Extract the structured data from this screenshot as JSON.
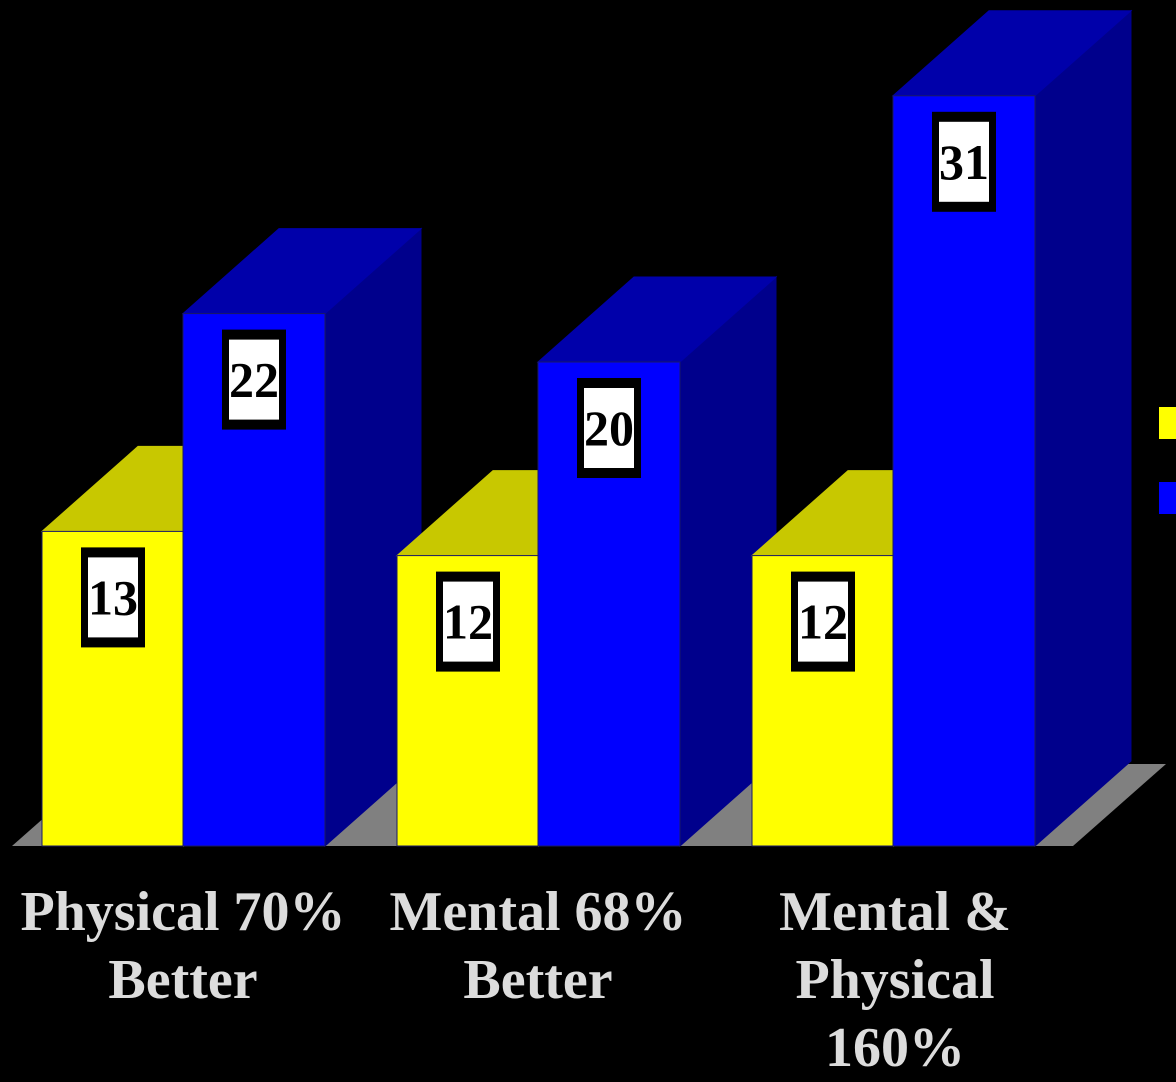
{
  "chart_data": {
    "type": "bar",
    "style": "3d-clustered-column",
    "categories": [
      "Physical 70%\nBetter",
      "Mental 68%\nBetter",
      "Mental &\nPhysical 160%"
    ],
    "series": [
      {
        "values": [
          13,
          12,
          12
        ],
        "color": "#ffff00",
        "side_color": "#c8c800",
        "top_color": "#c8c800"
      },
      {
        "values": [
          22,
          20,
          31
        ],
        "color": "#0000ff",
        "side_color": "#00008c",
        "top_color": "#0000aa"
      }
    ],
    "data_labels": [
      "13",
      "12",
      "12",
      "22",
      "20",
      "31"
    ],
    "grid": false,
    "legend": "right (clipped)",
    "background": "#000000",
    "floor_color": "#808080",
    "label_color": "#dcdcdc"
  }
}
